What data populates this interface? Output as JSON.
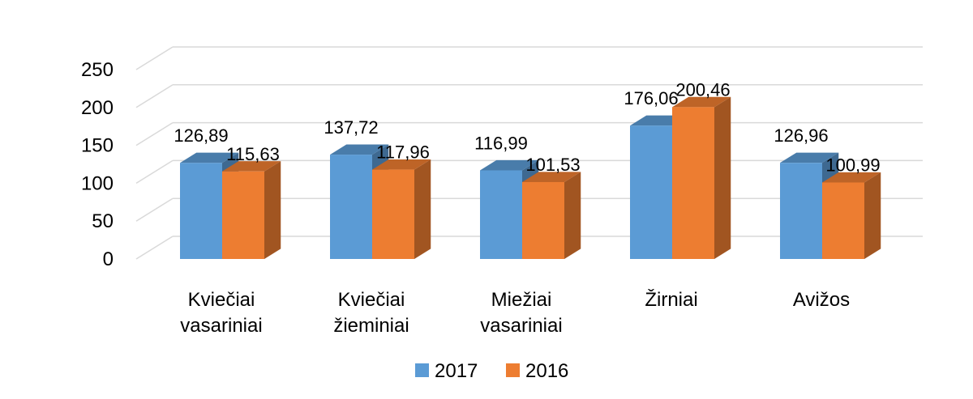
{
  "chart_data": {
    "type": "bar",
    "three_d": true,
    "categories": [
      [
        "Kviečiai",
        "vasariniai"
      ],
      [
        "Kviečiai",
        "žieminiai"
      ],
      [
        "Miežiai",
        "vasariniai"
      ],
      [
        "Žirniai"
      ],
      [
        "Avižos"
      ]
    ],
    "series": [
      {
        "name": "2017",
        "color": "#5B9BD5",
        "values": [
          126.89,
          137.72,
          116.99,
          176.06,
          126.96
        ],
        "labels": [
          "126,89",
          "137,72",
          "116,99",
          "176,06",
          "126,96"
        ]
      },
      {
        "name": "2016",
        "color": "#ED7D31",
        "values": [
          115.63,
          117.96,
          101.53,
          200.46,
          100.99
        ],
        "labels": [
          "115,63",
          "117,96",
          "101,53",
          "200,46",
          "100,99"
        ]
      }
    ],
    "y_ticks": [
      "0",
      "50",
      "100",
      "150",
      "200",
      "250"
    ],
    "ylim": [
      0,
      250
    ],
    "grid": true,
    "legend_position": "bottom"
  }
}
